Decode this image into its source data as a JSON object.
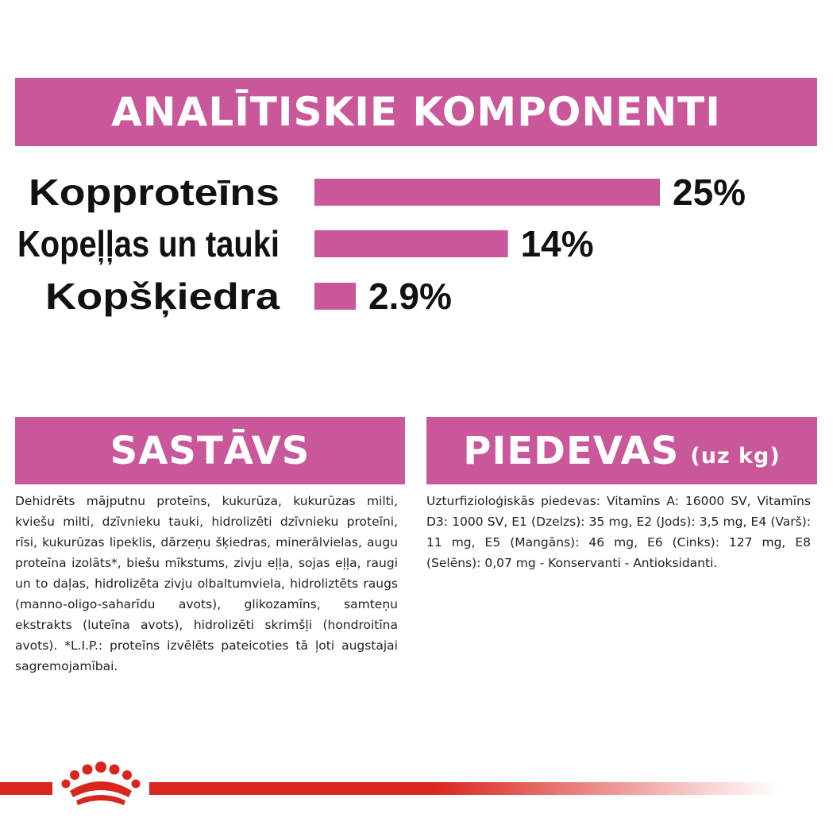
{
  "header": {
    "title": "ANALĪTISKIE KOMPONENTI"
  },
  "chart_data": {
    "type": "bar",
    "orientation": "horizontal",
    "categories": [
      "Kopproteīns",
      "Kopeļļas un tauki",
      "Kopšķiedra"
    ],
    "values": [
      25,
      14,
      2.9
    ],
    "value_labels": [
      "25%",
      "14%",
      "2.9%"
    ],
    "unit": "%",
    "xlim": [
      0,
      25
    ],
    "bar_color": "#c9579a",
    "grid": false,
    "legend": "none"
  },
  "sastavs": {
    "title": "SASTĀVS",
    "text": "Dehidrēts mājputnu proteīns, kukurūza, kukurūzas milti, kviešu milti, dzīvnieku tauki, hidrolizēti dzīvnieku proteīni, rīsi, kukurūzas lipeklis, dārzeņu šķiedras, minerālvielas, augu proteīna izolāts*, biešu mīkstums, zivju eļļa, sojas eļļa, raugi un to daļas, hidrolizēta zivju olbaltumviela, hidroliztēts raugs (manno-oligo-saharīdu avots), glikozamīns, samteņu ekstrakts (luteīna avots), hidrolizēti skrimšļi (hondroitīna avots). *L.I.P.: proteīns izvēlēts pateicoties tā ļoti augstajai sagremojamībai."
  },
  "piedevas": {
    "title": "PIEDEVAS",
    "unit": "(uz kg)",
    "text": "Uzturfizioloģiskās piedevas: Vitamīns A: 16000 SV, Vitamīns D3: 1000 SV, E1 (Dzelzs): 35 mg, E2 (Jods): 3,5 mg, E4 (Varš): 11 mg, E5 (Mangāns): 46 mg, E6 (Cinks): 127 mg, E8 (Selēns): 0,07 mg - Konservanti - Antioksidanti."
  },
  "colors": {
    "accent": "#c9579a",
    "brand_red": "#d9251e"
  },
  "footer": {
    "logo_icon": "crown-icon"
  }
}
